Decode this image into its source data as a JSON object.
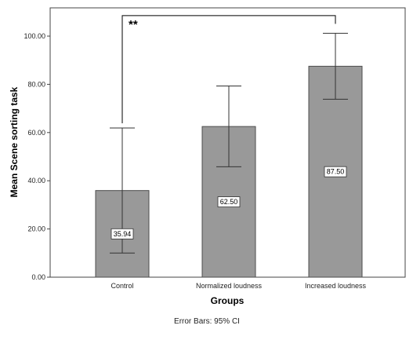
{
  "chart_data": {
    "type": "bar",
    "title": "",
    "xlabel": "Groups",
    "ylabel": "Mean Scene sorting task",
    "categories": [
      "Control",
      "Normalized loudness",
      "Increased loudness"
    ],
    "values": [
      35.94,
      62.5,
      87.5
    ],
    "data_labels": [
      "35.94",
      "62.50",
      "87.50"
    ],
    "error_bars": {
      "lower": [
        10.0,
        45.8,
        73.8
      ],
      "upper": [
        61.9,
        79.3,
        101.2
      ]
    },
    "ylim": [
      0,
      115
    ],
    "yticks": [
      0,
      20,
      40,
      60,
      80,
      100
    ],
    "ytick_labels": [
      "0.00",
      "20.00",
      "40.00",
      "60.00",
      "80.00",
      "100.00"
    ],
    "grid": false,
    "legend": "none",
    "annotation": {
      "text": "**",
      "from_category": 0,
      "to_category": 2,
      "bracket_y": 108.5
    },
    "footnote": "Error Bars: 95% CI",
    "colors": {
      "bar_fill": "#999999",
      "bar_stroke": "#4d4d4d",
      "axis": "#444444",
      "error_bar": "#333333"
    }
  }
}
